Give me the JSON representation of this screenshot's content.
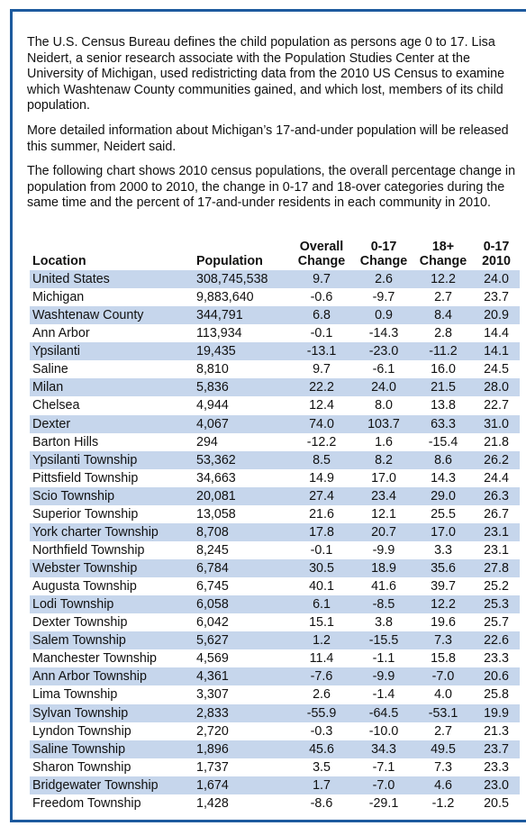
{
  "paragraphs": [
    "The U.S. Census Bureau defines the child population as persons age 0 to 17. Lisa Neidert, a senior research associate with the Population Studies Center at the University of Michigan, used redistricting data from the 2010 US Census to examine which Washtenaw County communities gained, and which lost, members of its child population.",
    "More detailed information about Michigan’s 17-and-under population will be released this summer, Neidert said.",
    "The following chart shows 2010 census populations, the overall percentage change in population from 2000 to 2010, the change in 0-17 and 18-over categories during the same time and the percent of 17-and-under residents in each community in 2010."
  ],
  "table": {
    "headers": [
      "Location",
      "Population",
      "Overall Change",
      "0-17 Change",
      "18+ Change",
      "0-17 2010"
    ],
    "rows": [
      [
        "United States",
        "308,745,538",
        "9.7",
        "2.6",
        "12.2",
        "24.0"
      ],
      [
        "Michigan",
        "9,883,640",
        "-0.6",
        "-9.7",
        "2.7",
        "23.7"
      ],
      [
        "Washtenaw County",
        "344,791",
        "6.8",
        "0.9",
        "8.4",
        "20.9"
      ],
      [
        "Ann Arbor",
        "113,934",
        "-0.1",
        "-14.3",
        "2.8",
        "14.4"
      ],
      [
        "Ypsilanti",
        "19,435",
        "-13.1",
        "-23.0",
        "-11.2",
        "14.1"
      ],
      [
        "Saline",
        "8,810",
        "9.7",
        "-6.1",
        "16.0",
        "24.5"
      ],
      [
        "Milan",
        "5,836",
        "22.2",
        "24.0",
        "21.5",
        "28.0"
      ],
      [
        "Chelsea",
        "4,944",
        "12.4",
        "8.0",
        "13.8",
        "22.7"
      ],
      [
        "Dexter",
        "4,067",
        "74.0",
        "103.7",
        "63.3",
        "31.0"
      ],
      [
        "Barton Hills",
        "294",
        "-12.2",
        "1.6",
        "-15.4",
        "21.8"
      ],
      [
        "Ypsilanti Township",
        "53,362",
        "8.5",
        "8.2",
        "8.6",
        "26.2"
      ],
      [
        "Pittsfield Township",
        "34,663",
        "14.9",
        "17.0",
        "14.3",
        "24.4"
      ],
      [
        "Scio Township",
        "20,081",
        "27.4",
        "23.4",
        "29.0",
        "26.3"
      ],
      [
        "Superior Township",
        "13,058",
        "21.6",
        "12.1",
        "25.5",
        "26.7"
      ],
      [
        "York charter Township",
        "8,708",
        "17.8",
        "20.7",
        "17.0",
        "23.1"
      ],
      [
        "Northfield Township",
        "8,245",
        "-0.1",
        "-9.9",
        "3.3",
        "23.1"
      ],
      [
        "Webster Township",
        "6,784",
        "30.5",
        "18.9",
        "35.6",
        "27.8"
      ],
      [
        "Augusta Township",
        "6,745",
        "40.1",
        "41.6",
        "39.7",
        "25.2"
      ],
      [
        "Lodi Township",
        "6,058",
        "6.1",
        "-8.5",
        "12.2",
        "25.3"
      ],
      [
        "Dexter Township",
        "6,042",
        "15.1",
        "3.8",
        "19.6",
        "25.7"
      ],
      [
        "Salem Township",
        "5,627",
        "1.2",
        "-15.5",
        "7.3",
        "22.6"
      ],
      [
        "Manchester Township",
        "4,569",
        "11.4",
        "-1.1",
        "15.8",
        "23.3"
      ],
      [
        "Ann Arbor Township",
        "4,361",
        "-7.6",
        "-9.9",
        "-7.0",
        "20.6"
      ],
      [
        "Lima Township",
        "3,307",
        "2.6",
        "-1.4",
        "4.0",
        "25.8"
      ],
      [
        "Sylvan Township",
        "2,833",
        "-55.9",
        "-64.5",
        "-53.1",
        "19.9"
      ],
      [
        "Lyndon Township",
        "2,720",
        "-0.3",
        "-10.0",
        "2.7",
        "21.3"
      ],
      [
        "Saline Township",
        "1,896",
        "45.6",
        "34.3",
        "49.5",
        "23.7"
      ],
      [
        "Sharon Township",
        "1,737",
        "3.5",
        "-7.1",
        "7.3",
        "23.3"
      ],
      [
        "Bridgewater Township",
        "1,674",
        "1.7",
        "-7.0",
        "4.6",
        "23.0"
      ],
      [
        "Freedom Township",
        "1,428",
        "-8.6",
        "-29.1",
        "-1.2",
        "20.5"
      ]
    ]
  }
}
